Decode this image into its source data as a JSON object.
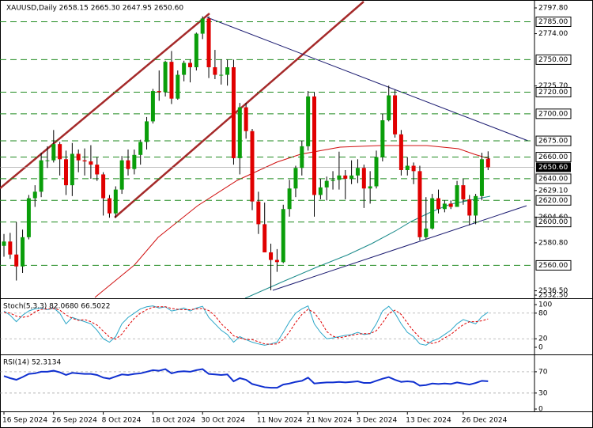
{
  "chart_data": [
    {
      "type": "candlestick",
      "title": "XAUUSD,Daily  2658.15 2665.30 2647.95 2650.60",
      "categories": [
        "16 Sep 2024",
        null,
        null,
        null,
        null,
        null,
        null,
        null,
        "26 Sep 2024",
        null,
        null,
        null,
        null,
        null,
        null,
        null,
        "8 Oct 2024",
        null,
        null,
        null,
        null,
        null,
        null,
        null,
        "18 Oct 2024",
        null,
        null,
        null,
        null,
        null,
        null,
        null,
        "30 Oct 2024",
        null,
        null,
        null,
        null,
        null,
        null,
        null,
        null,
        "11 Nov 2024",
        null,
        null,
        null,
        null,
        null,
        null,
        null,
        "21 Nov 2024",
        null,
        null,
        null,
        null,
        null,
        null,
        null,
        "3 Dec 2024",
        null,
        null,
        null,
        null,
        null,
        null,
        null,
        "13 Dec 2024",
        null,
        null,
        null,
        null,
        null,
        null,
        null,
        null,
        "26 Dec 2024",
        null,
        null,
        null,
        null
      ],
      "open": [
        2578,
        2582,
        2570,
        2559,
        2586,
        2622,
        2628,
        2657,
        2657,
        2672,
        2658,
        2634,
        2663,
        2657,
        2656,
        2653,
        2644,
        2622,
        2608,
        2630,
        2657,
        2649,
        2662,
        2674,
        2693,
        2721,
        2720,
        2748,
        2714,
        2736,
        2747,
        2743,
        2774,
        2788,
        2743,
        2736,
        2736,
        2743,
        2659,
        2706,
        2684,
        2619,
        2598,
        2572,
        2565,
        2563,
        2612,
        2631,
        2650,
        2670,
        2716,
        2625,
        2632,
        2638,
        2639,
        2643,
        2640,
        2643,
        2650,
        2631,
        2633,
        2660,
        2694,
        2717,
        2681,
        2648,
        2652,
        2647,
        2586,
        2594,
        2622,
        2612,
        2617,
        2614,
        2634,
        2621,
        2606,
        2624,
        2658.15
      ],
      "high": [
        2589,
        2590,
        2600,
        2593,
        2625,
        2634,
        2664,
        2670,
        2685,
        2674,
        2666,
        2673,
        2667,
        2668,
        2671,
        2660,
        2646,
        2625,
        2633,
        2661,
        2667,
        2667,
        2676,
        2697,
        2723,
        2740,
        2749,
        2758,
        2740,
        2749,
        2750,
        2775,
        2790,
        2790,
        2759,
        2750,
        2750,
        2750,
        2710,
        2710,
        2686,
        2628,
        2618,
        2580,
        2575,
        2616,
        2639,
        2652,
        2675,
        2721,
        2720,
        2640,
        2642,
        2647,
        2665,
        2648,
        2657,
        2658,
        2653,
        2647,
        2666,
        2700,
        2726,
        2722,
        2685,
        2660,
        2655,
        2652,
        2623,
        2626,
        2630,
        2620,
        2620,
        2638,
        2640,
        2625,
        2626,
        2664,
        2665.3
      ],
      "low": [
        2568,
        2566,
        2546,
        2553,
        2584,
        2614,
        2623,
        2650,
        2655,
        2643,
        2625,
        2624,
        2646,
        2643,
        2640,
        2638,
        2606,
        2604,
        2604,
        2626,
        2643,
        2644,
        2653,
        2667,
        2691,
        2712,
        2716,
        2709,
        2713,
        2730,
        2729,
        2740,
        2769,
        2733,
        2732,
        2727,
        2726,
        2653,
        2644,
        2677,
        2611,
        2589,
        2572,
        2537,
        2554,
        2562,
        2605,
        2623,
        2643,
        2666,
        2605,
        2621,
        2620,
        2630,
        2630,
        2621,
        2635,
        2636,
        2613,
        2617,
        2631,
        2656,
        2693,
        2678,
        2643,
        2643,
        2635,
        2583,
        2584,
        2593,
        2608,
        2609,
        2612,
        2614,
        2616,
        2597,
        2598,
        2620,
        2647.95
      ],
      "close": [
        2582,
        2570,
        2559,
        2586,
        2622,
        2628,
        2657,
        2657,
        2672,
        2658,
        2634,
        2663,
        2657,
        2656,
        2653,
        2644,
        2622,
        2608,
        2630,
        2657,
        2649,
        2662,
        2674,
        2693,
        2721,
        2720,
        2748,
        2714,
        2736,
        2747,
        2743,
        2774,
        2788,
        2743,
        2736,
        2736,
        2743,
        2659,
        2706,
        2684,
        2619,
        2598,
        2572,
        2565,
        2563,
        2612,
        2631,
        2650,
        2670,
        2716,
        2625,
        2632,
        2638,
        2639,
        2643,
        2640,
        2643,
        2650,
        2631,
        2633,
        2660,
        2694,
        2717,
        2681,
        2648,
        2652,
        2647,
        2586,
        2594,
        2622,
        2612,
        2617,
        2614,
        2634,
        2621,
        2606,
        2624,
        2658,
        2650.6
      ],
      "up_color": "#0a9e0a",
      "down_color": "#e00000",
      "ylim": [
        2529.6,
        2805.1
      ],
      "yticks": [
        {
          "value": 2797.8,
          "label": "2797.80"
        },
        {
          "value": 2774,
          "label": "2774.00"
        },
        {
          "value": 2725.7,
          "label": "2725.70"
        },
        {
          "value": 2629.1,
          "label": "2629.10"
        },
        {
          "value": 2604.6,
          "label": "2604.60"
        },
        {
          "value": 2580.8,
          "label": "2580.80"
        },
        {
          "value": 2536.5,
          "label": "2536.50"
        },
        {
          "value": 2532.5,
          "label": "2532.50"
        }
      ],
      "levels": [
        {
          "value": 2785,
          "label": "2785.00"
        },
        {
          "value": 2750,
          "label": "2750.00"
        },
        {
          "value": 2720,
          "label": "2720.00"
        },
        {
          "value": 2700,
          "label": "2700.00"
        },
        {
          "value": 2675,
          "label": "2675.00"
        },
        {
          "value": 2660,
          "label": "2660.00"
        },
        {
          "value": 2640,
          "label": "2640.00"
        },
        {
          "value": 2620,
          "label": "2620.00"
        },
        {
          "value": 2600,
          "label": "2600.00"
        },
        {
          "value": 2560,
          "label": "2560.00"
        }
      ],
      "level_color": "#1f8a1f",
      "last_price": {
        "value": 2650.6,
        "label": "2650.60"
      }
    },
    {
      "type": "line",
      "title": "Stoch(5,3,3) 82.0680 66.5022",
      "series": [
        {
          "color": "#2aa6c8",
          "dash": false,
          "values": [
            85,
            75,
            60,
            75,
            85,
            90,
            92,
            88,
            92,
            80,
            55,
            70,
            65,
            60,
            55,
            40,
            20,
            12,
            25,
            55,
            70,
            80,
            90,
            95,
            97,
            92,
            95,
            85,
            88,
            92,
            85,
            92,
            96,
            70,
            55,
            40,
            30,
            12,
            25,
            18,
            12,
            8,
            5,
            8,
            12,
            35,
            60,
            80,
            90,
            97,
            55,
            35,
            20,
            22,
            25,
            28,
            30,
            35,
            30,
            32,
            55,
            85,
            96,
            80,
            55,
            35,
            25,
            8,
            5,
            15,
            20,
            30,
            40,
            55,
            65,
            60,
            55,
            72,
            82.068
          ]
        },
        {
          "color": "#e00000",
          "dash": true,
          "values": [
            82,
            80,
            73,
            70,
            73,
            83,
            89,
            90,
            91,
            87,
            76,
            68,
            63,
            65,
            60,
            52,
            38,
            24,
            19,
            31,
            50,
            68,
            80,
            88,
            94,
            95,
            95,
            91,
            89,
            88,
            88,
            90,
            91,
            86,
            74,
            55,
            42,
            27,
            22,
            18,
            18,
            13,
            8,
            7,
            8,
            18,
            36,
            58,
            77,
            89,
            81,
            62,
            37,
            26,
            22,
            25,
            28,
            31,
            32,
            32,
            39,
            57,
            79,
            87,
            77,
            57,
            38,
            23,
            13,
            9,
            13,
            22,
            30,
            42,
            53,
            60,
            60,
            62,
            66.5022
          ]
        }
      ],
      "ylim": [
        -14.8,
        109.3
      ],
      "yticks": [
        100,
        80,
        20,
        0
      ],
      "levels": [
        80,
        20
      ]
    },
    {
      "type": "line",
      "title": "RSI(14) 52.3134",
      "series": [
        {
          "color": "#1030d0",
          "dash": false,
          "values": [
            62,
            58,
            55,
            60,
            66,
            67,
            70,
            70,
            72,
            69,
            64,
            68,
            67,
            66,
            66,
            64,
            59,
            57,
            61,
            65,
            64,
            66,
            67,
            70,
            73,
            72,
            75,
            67,
            70,
            71,
            70,
            73,
            75,
            66,
            65,
            64,
            65,
            52,
            58,
            55,
            47,
            44,
            41,
            40,
            40,
            46,
            48,
            51,
            53,
            59,
            48,
            49,
            50,
            50,
            51,
            50,
            51,
            52,
            49,
            49,
            53,
            57,
            60,
            55,
            51,
            52,
            51,
            44,
            45,
            48,
            47,
            48,
            47,
            50,
            48,
            46,
            49,
            53,
            52.3134
          ]
        }
      ],
      "ylim": [
        -4.4,
        99.6
      ],
      "yticks": [
        70,
        30,
        0
      ],
      "levels": [
        70,
        30
      ]
    }
  ]
}
